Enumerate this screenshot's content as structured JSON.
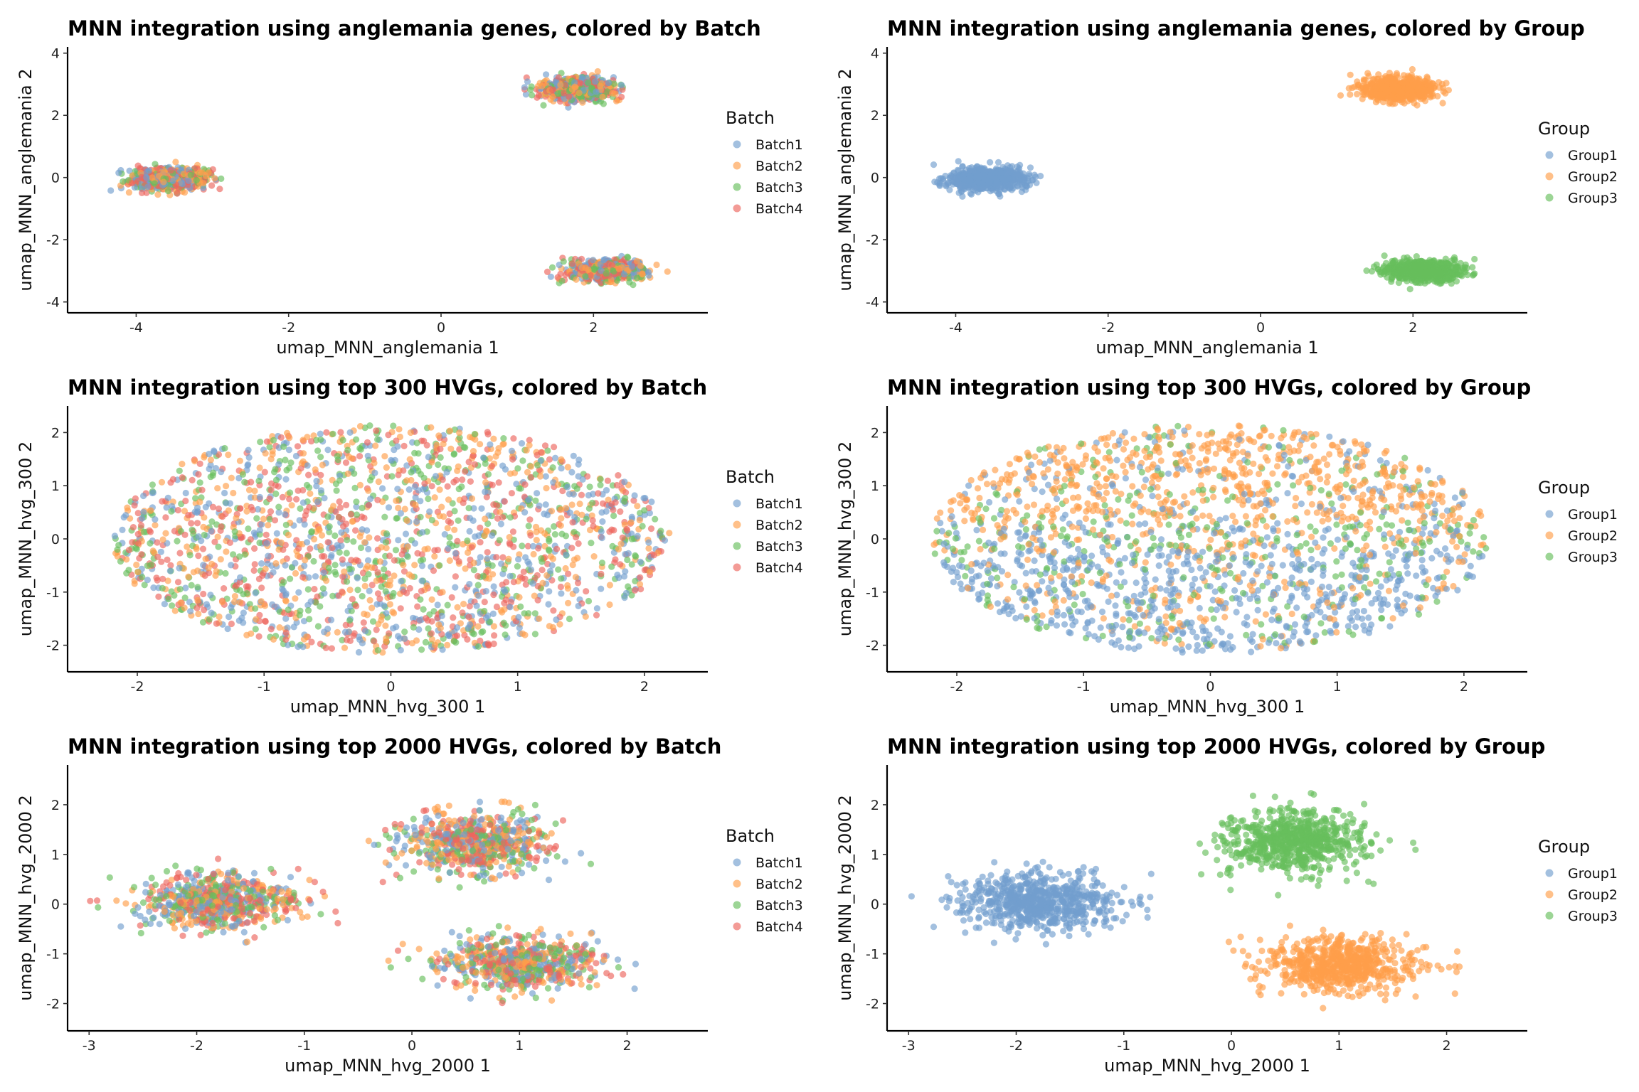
{
  "colors": {
    "Batch1": "#729ECE",
    "Batch2": "#FF9E4A",
    "Batch3": "#67BF5C",
    "Batch4": "#ED665D",
    "Group1": "#729ECE",
    "Group2": "#FF9E4A",
    "Group3": "#67BF5C"
  },
  "chart_data": [
    {
      "type": "scatter",
      "title": "MNN integration using anglemania genes, colored by Batch",
      "xlabel": "umap_MNN_anglemania 1",
      "ylabel": "umap_MNN_anglemania 2",
      "xlim": [
        -4.9,
        3.5
      ],
      "ylim": [
        -4.35,
        4.2
      ],
      "xticks": [
        -4,
        -2,
        0,
        2
      ],
      "yticks": [
        -4,
        -2,
        0,
        2,
        4
      ],
      "grid": false,
      "legend": "right",
      "legend_title": "Batch",
      "series": [
        {
          "name": "Batch1",
          "color": "#729ECE"
        },
        {
          "name": "Batch2",
          "color": "#FF9E4A"
        },
        {
          "name": "Batch3",
          "color": "#67BF5C"
        },
        {
          "name": "Batch4",
          "color": "#ED665D"
        }
      ],
      "clusters": [
        {
          "center": [
            -3.6,
            -0.05
          ],
          "spread": [
            0.45,
            0.32
          ],
          "share": 0.34,
          "labels": [
            "Batch1",
            "Batch2",
            "Batch3",
            "Batch4"
          ]
        },
        {
          "center": [
            1.8,
            2.85
          ],
          "spread": [
            0.42,
            0.32
          ],
          "share": 0.33,
          "labels": [
            "Batch1",
            "Batch2",
            "Batch3",
            "Batch4"
          ]
        },
        {
          "center": [
            2.15,
            -3.0
          ],
          "spread": [
            0.45,
            0.3
          ],
          "share": 0.33,
          "labels": [
            "Batch1",
            "Batch2",
            "Batch3",
            "Batch4"
          ]
        }
      ]
    },
    {
      "type": "scatter",
      "title": "MNN integration using anglemania genes, colored by Group",
      "xlabel": "umap_MNN_anglemania 1",
      "ylabel": "umap_MNN_anglemania 2",
      "xlim": [
        -4.9,
        3.5
      ],
      "ylim": [
        -4.35,
        4.2
      ],
      "xticks": [
        -4,
        -2,
        0,
        2
      ],
      "yticks": [
        -4,
        -2,
        0,
        2,
        4
      ],
      "grid": false,
      "legend": "right",
      "legend_title": "Group",
      "series": [
        {
          "name": "Group1",
          "color": "#729ECE"
        },
        {
          "name": "Group2",
          "color": "#FF9E4A"
        },
        {
          "name": "Group3",
          "color": "#67BF5C"
        }
      ],
      "clusters": [
        {
          "center": [
            -3.6,
            -0.05
          ],
          "spread": [
            0.45,
            0.32
          ],
          "share": 0.34,
          "labels": [
            "Group1"
          ]
        },
        {
          "center": [
            1.8,
            2.85
          ],
          "spread": [
            0.42,
            0.32
          ],
          "share": 0.33,
          "labels": [
            "Group2"
          ]
        },
        {
          "center": [
            2.15,
            -3.0
          ],
          "spread": [
            0.45,
            0.3
          ],
          "share": 0.33,
          "labels": [
            "Group3"
          ]
        }
      ]
    },
    {
      "type": "scatter",
      "title": "MNN integration using top 300 HVGs, colored by Batch",
      "xlabel": "umap_MNN_hvg_300 1",
      "ylabel": "umap_MNN_hvg_300 2",
      "xlim": [
        -2.55,
        2.5
      ],
      "ylim": [
        -2.5,
        2.5
      ],
      "xticks": [
        -2,
        -1,
        0,
        1,
        2
      ],
      "yticks": [
        -2,
        -1,
        0,
        1,
        2
      ],
      "grid": false,
      "legend": "right",
      "legend_title": "Batch",
      "series": [
        {
          "name": "Batch1",
          "color": "#729ECE"
        },
        {
          "name": "Batch2",
          "color": "#FF9E4A"
        },
        {
          "name": "Batch3",
          "color": "#67BF5C"
        },
        {
          "name": "Batch4",
          "color": "#ED665D"
        }
      ],
      "clusters": [
        {
          "center": [
            0.0,
            0.0
          ],
          "spread": [
            2.2,
            2.15
          ],
          "share": 1.0,
          "shape": "ellipse",
          "labels": [
            "Batch1",
            "Batch2",
            "Batch3",
            "Batch4"
          ]
        }
      ]
    },
    {
      "type": "scatter",
      "title": "MNN integration using top 300 HVGs, colored by Group",
      "xlabel": "umap_MNN_hvg_300 1",
      "ylabel": "umap_MNN_hvg_300 2",
      "xlim": [
        -2.55,
        2.5
      ],
      "ylim": [
        -2.5,
        2.5
      ],
      "xticks": [
        -2,
        -1,
        0,
        1,
        2
      ],
      "yticks": [
        -2,
        -1,
        0,
        1,
        2
      ],
      "grid": false,
      "legend": "right",
      "legend_title": "Group",
      "series": [
        {
          "name": "Group1",
          "color": "#729ECE"
        },
        {
          "name": "Group2",
          "color": "#FF9E4A"
        },
        {
          "name": "Group3",
          "color": "#67BF5C"
        }
      ],
      "clusters": [
        {
          "center": [
            0.0,
            0.0
          ],
          "spread": [
            2.2,
            2.15
          ],
          "share": 1.0,
          "shape": "ellipse",
          "labels": [
            "Group1",
            "Group2",
            "Group3"
          ]
        }
      ]
    },
    {
      "type": "scatter",
      "title": "MNN integration using top 2000 HVGs, colored by Batch",
      "xlabel": "umap_MNN_hvg_2000 1",
      "ylabel": "umap_MNN_hvg_2000 2",
      "xlim": [
        -3.2,
        2.75
      ],
      "ylim": [
        -2.55,
        2.8
      ],
      "xticks": [
        -3,
        -2,
        -1,
        0,
        1,
        2
      ],
      "yticks": [
        -2,
        -1,
        0,
        1,
        2
      ],
      "grid": false,
      "legend": "right",
      "legend_title": "Batch",
      "series": [
        {
          "name": "Batch1",
          "color": "#729ECE"
        },
        {
          "name": "Batch2",
          "color": "#FF9E4A"
        },
        {
          "name": "Batch3",
          "color": "#67BF5C"
        },
        {
          "name": "Batch4",
          "color": "#ED665D"
        }
      ],
      "clusters": [
        {
          "center": [
            -1.8,
            0.05
          ],
          "spread": [
            0.65,
            0.5
          ],
          "share": 0.34,
          "labels": [
            "Batch1",
            "Batch2",
            "Batch3",
            "Batch4"
          ]
        },
        {
          "center": [
            0.6,
            1.25
          ],
          "spread": [
            0.6,
            0.55
          ],
          "share": 0.33,
          "labels": [
            "Batch1",
            "Batch2",
            "Batch3",
            "Batch4"
          ]
        },
        {
          "center": [
            1.0,
            -1.2
          ],
          "spread": [
            0.65,
            0.5
          ],
          "share": 0.33,
          "labels": [
            "Batch1",
            "Batch2",
            "Batch3",
            "Batch4"
          ]
        }
      ]
    },
    {
      "type": "scatter",
      "title": "MNN integration using top 2000 HVGs, colored by Group",
      "xlabel": "umap_MNN_hvg_2000 1",
      "ylabel": "umap_MNN_hvg_2000 2",
      "xlim": [
        -3.2,
        2.75
      ],
      "ylim": [
        -2.55,
        2.8
      ],
      "xticks": [
        -3,
        -2,
        -1,
        0,
        1,
        2
      ],
      "yticks": [
        -2,
        -1,
        0,
        1,
        2
      ],
      "grid": false,
      "legend": "right",
      "legend_title": "Group",
      "series": [
        {
          "name": "Group1",
          "color": "#729ECE"
        },
        {
          "name": "Group2",
          "color": "#FF9E4A"
        },
        {
          "name": "Group3",
          "color": "#67BF5C"
        }
      ],
      "clusters": [
        {
          "center": [
            -1.8,
            0.05
          ],
          "spread": [
            0.65,
            0.5
          ],
          "share": 0.34,
          "labels": [
            "Group1"
          ]
        },
        {
          "center": [
            0.6,
            1.25
          ],
          "spread": [
            0.6,
            0.55
          ],
          "share": 0.33,
          "labels": [
            "Group3"
          ]
        },
        {
          "center": [
            1.0,
            -1.2
          ],
          "spread": [
            0.65,
            0.5
          ],
          "share": 0.33,
          "labels": [
            "Group2"
          ]
        }
      ]
    }
  ]
}
